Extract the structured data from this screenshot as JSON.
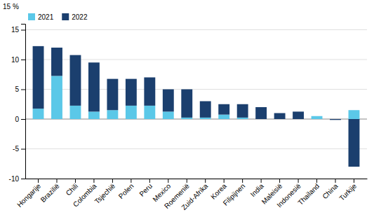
{
  "chart_data": {
    "type": "bar",
    "stacked": true,
    "ylabel": "15 %",
    "categories": [
      "Hongarije",
      "Brazilië",
      "Chili",
      "Colombia",
      "Tsjechië",
      "Polen",
      "Peru",
      "Mexico",
      "Roemenië",
      "Zuid-Afrika",
      "Korea",
      "Filipijnen",
      "India",
      "Maleisië",
      "Indonesië",
      "Thailand",
      "China",
      "Turkije"
    ],
    "series": [
      {
        "name": "2021",
        "color": "#5bc8e8",
        "values": [
          1.75,
          7.25,
          2.25,
          1.25,
          1.5,
          2.25,
          2.25,
          1.25,
          0.25,
          0.25,
          0.75,
          0.25,
          0.0,
          0.0,
          0.0,
          0.5,
          0.0,
          1.5
        ]
      },
      {
        "name": "2022",
        "color": "#1b3f6e",
        "values": [
          10.5,
          4.75,
          8.5,
          8.25,
          5.25,
          4.5,
          4.75,
          3.75,
          4.75,
          2.75,
          1.75,
          2.25,
          2.0,
          1.0,
          1.25,
          0.0,
          -0.15,
          -8.0
        ]
      }
    ],
    "ylim": [
      -10,
      16
    ],
    "yticks": [
      -10,
      -5,
      0,
      5,
      10,
      15
    ],
    "grid": true,
    "legend": "upper left"
  }
}
